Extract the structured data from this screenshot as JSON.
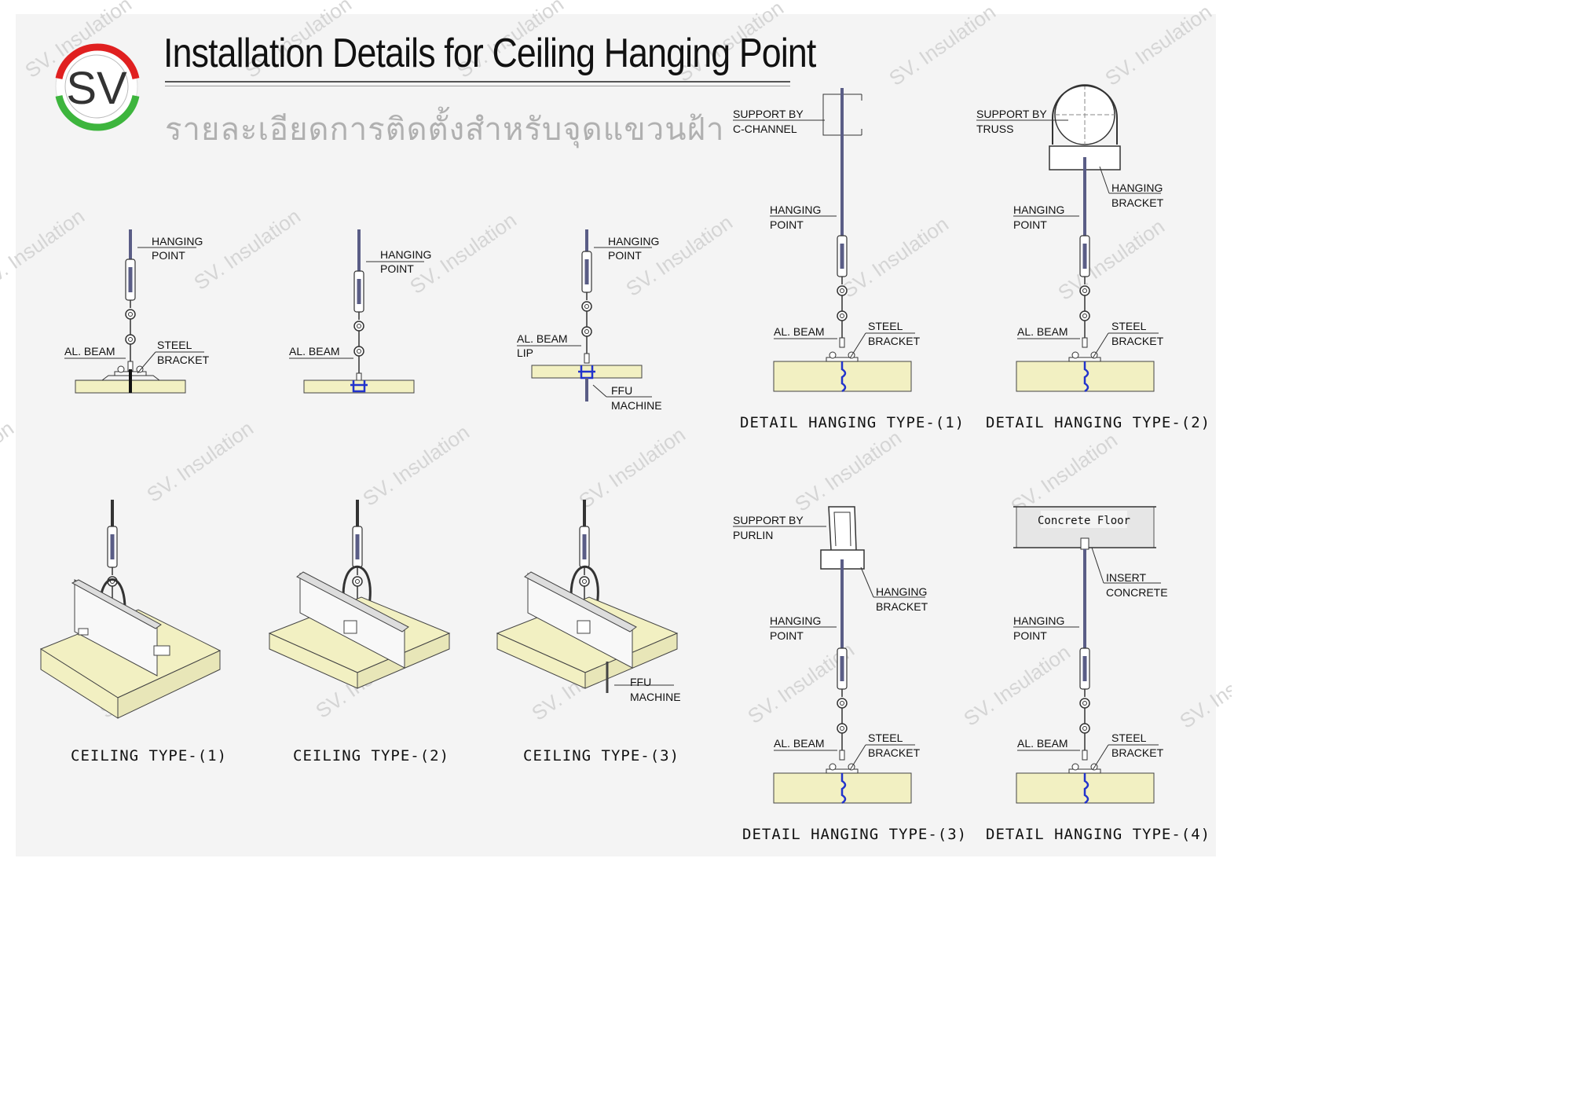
{
  "header": {
    "logo_text": "SV",
    "title": "Installation Details for Ceiling Hanging Point",
    "subtitle": "รายละเอียดการติดตั้งสำหรับจุดแขวนฝ้า"
  },
  "watermark": "SV. Insulation",
  "colors": {
    "panel_core": "#f2f0c2",
    "rod": "#5a5d86",
    "profile_blue": "#2233cc",
    "logo_red": "#e02020",
    "logo_green": "#3db53d"
  },
  "labels": {
    "hanging_point_1": "HANGING",
    "hanging_point_2": "POINT",
    "al_beam": "AL. BEAM",
    "steel_1": "STEEL",
    "steel_2": "BRACKET",
    "al_beam_lip_1": "AL. BEAM",
    "al_beam_lip_2": "LIP",
    "ffu_1": "FFU",
    "ffu_2": "MACHINE",
    "support_c_1": "SUPPORT BY",
    "support_c_2": "C-CHANNEL",
    "support_truss_1": "SUPPORT BY",
    "support_truss_2": "TRUSS",
    "support_purlin_1": "SUPPORT BY",
    "support_purlin_2": "PURLIN",
    "hanging_bracket_1": "HANGING",
    "hanging_bracket_2": "BRACKET",
    "insert_1": "INSERT",
    "insert_2": "CONCRETE",
    "concrete_floor": "Concrete Floor"
  },
  "captions": {
    "ceiling_1": "CEILING  TYPE-(1)",
    "ceiling_2": "CEILING  TYPE-(2)",
    "ceiling_3": "CEILING  TYPE-(3)",
    "detail_1": "DETAIL  HANGING  TYPE-(1)",
    "detail_2": "DETAIL  HANGING  TYPE-(2)",
    "detail_3": "DETAIL  HANGING  TYPE-(3)",
    "detail_4": "DETAIL  HANGING  TYPE-(4)"
  }
}
